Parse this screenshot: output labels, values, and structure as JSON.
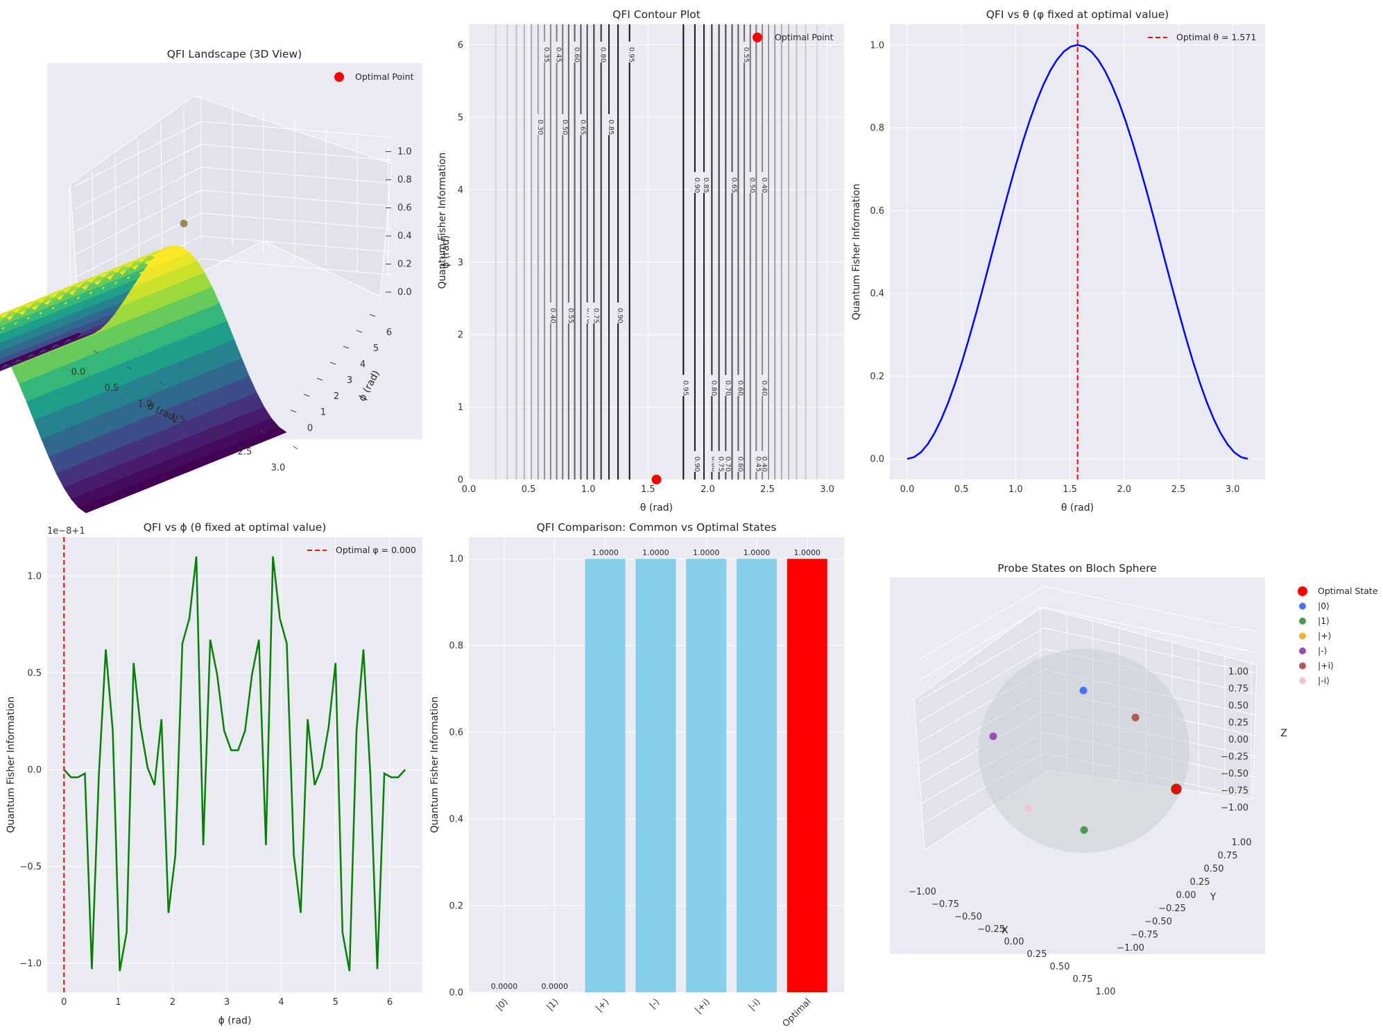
{
  "chart_data": [
    {
      "type": "surface3d",
      "title": "QFI Landscape (3D View)",
      "xlabel": "θ (rad)",
      "ylabel": "ϕ (rad)",
      "zlabel": "Quantum Fisher Information",
      "x_ticks": [
        "0.0",
        "0.5",
        "1.0",
        "1.5",
        "2.0",
        "2.5",
        "3.0"
      ],
      "y_ticks": [
        "0",
        "1",
        "2",
        "3",
        "4",
        "5",
        "6"
      ],
      "z_ticks": [
        "0.0",
        "0.2",
        "0.4",
        "0.6",
        "0.8",
        "1.0"
      ],
      "xlim": [
        0,
        3.1416
      ],
      "ylim": [
        0,
        6.2832
      ],
      "zlim": [
        0,
        1
      ],
      "function": "sin(theta)^2",
      "colormap": "viridis",
      "optimal_point": {
        "theta": 1.5708,
        "phi": 0,
        "qfi": 1.0
      },
      "legend": [
        "Optimal Point"
      ]
    },
    {
      "type": "contour",
      "title": "QFI Contour Plot",
      "xlabel": "θ (rad)",
      "ylabel": "ϕ (rad)",
      "x_ticks": [
        "0.0",
        "0.5",
        "1.0",
        "1.5",
        "2.0",
        "2.5",
        "3.0"
      ],
      "y_ticks": [
        "0",
        "1",
        "2",
        "3",
        "4",
        "5",
        "6"
      ],
      "xlim": [
        0,
        3.1416
      ],
      "ylim": [
        0,
        6.2832
      ],
      "levels": [
        0.05,
        0.1,
        0.15,
        0.2,
        0.25,
        0.3,
        0.35,
        0.4,
        0.45,
        0.5,
        0.55,
        0.6,
        0.65,
        0.7,
        0.75,
        0.8,
        0.85,
        0.9,
        0.95
      ],
      "contour_labels": [
        "0.35",
        "0.45",
        "0.60",
        "0.80",
        "0.95",
        "0.30",
        "0.50",
        "0.65",
        "0.85",
        "0.85",
        "0.65",
        "0.50",
        "0.40",
        "0.90",
        "0.40",
        "0.55",
        "0.70",
        "0.75",
        "0.90",
        "0.95",
        "0.80",
        "0.70",
        "0.60",
        "0.40",
        "0.95",
        "0.80",
        "0.70",
        "0.60",
        "0.40",
        "0.90",
        "0.75",
        "0.55",
        "0.45"
      ],
      "optimal_point": {
        "theta": 1.5708,
        "phi": 0
      },
      "legend": [
        "Optimal Point"
      ]
    },
    {
      "type": "line",
      "title": "QFI vs θ (φ fixed at optimal value)",
      "xlabel": "θ (rad)",
      "ylabel": "Quantum Fisher Information",
      "x_ticks": [
        "0.0",
        "0.5",
        "1.0",
        "1.5",
        "2.0",
        "2.5",
        "3.0"
      ],
      "y_ticks": [
        "0.0",
        "0.2",
        "0.4",
        "0.6",
        "0.8",
        "1.0"
      ],
      "xlim": [
        -0.16,
        3.3
      ],
      "ylim": [
        -0.05,
        1.05
      ],
      "x_range": [
        0,
        3.1416
      ],
      "function": "sin(theta)^2",
      "optimal_theta": 1.571,
      "legend": [
        "Optimal θ = 1.571"
      ],
      "colors": {
        "curve": "#0000ff",
        "marker": "#ff0000"
      }
    },
    {
      "type": "line",
      "title": "QFI vs ϕ (θ fixed at optimal value)",
      "offset_label": "1e−8+1",
      "xlabel": "ϕ (rad)",
      "ylabel": "Quantum Fisher Information",
      "x_ticks": [
        "0",
        "1",
        "2",
        "3",
        "4",
        "5",
        "6"
      ],
      "y_ticks": [
        "−1.0",
        "−0.5",
        "0.0",
        "0.5",
        "1.0"
      ],
      "xlim": [
        -0.31,
        6.6
      ],
      "ylim": [
        -1.15,
        1.2
      ],
      "x": [
        0,
        0.128,
        0.256,
        0.385,
        0.513,
        0.641,
        0.769,
        0.898,
        1.026,
        1.154,
        1.282,
        1.411,
        1.539,
        1.667,
        1.795,
        1.924,
        2.052,
        2.18,
        2.308,
        2.437,
        2.565,
        2.693,
        2.821,
        2.949,
        3.078,
        3.206,
        3.334,
        3.462,
        3.59,
        3.719,
        3.847,
        3.975,
        4.103,
        4.232,
        4.36,
        4.488,
        4.616,
        4.744,
        4.873,
        5.001,
        5.129,
        5.257,
        5.386,
        5.514,
        5.642,
        5.77,
        5.899,
        6.027,
        6.155,
        6.283
      ],
      "y": [
        0,
        -0.04,
        -0.04,
        -0.02,
        -1.03,
        -0.03,
        0.62,
        0.2,
        -1.04,
        -0.84,
        0.55,
        0.22,
        0.01,
        -0.08,
        0.26,
        -0.74,
        -0.44,
        0.65,
        0.78,
        1.1,
        -0.39,
        0.67,
        0.49,
        0.2,
        0.1,
        0.1,
        0.2,
        0.49,
        0.67,
        -0.39,
        1.1,
        0.78,
        0.65,
        -0.44,
        -0.74,
        0.26,
        -0.08,
        0.01,
        0.22,
        0.55,
        -0.84,
        -1.04,
        0.2,
        0.62,
        -0.03,
        -1.03,
        -0.02,
        -0.04,
        -0.04,
        0
      ],
      "optimal_phi": 0.0,
      "legend": [
        "Optimal φ = 0.000"
      ],
      "colors": {
        "curve": "#008000",
        "marker": "#ff0000"
      }
    },
    {
      "type": "bar",
      "title": "QFI Comparison: Common vs Optimal States",
      "ylabel": "Quantum Fisher Information",
      "categories": [
        "|0⟩",
        "|1⟩",
        "|+⟩",
        "|-⟩",
        "|+i⟩",
        "|-i⟩",
        "Optimal"
      ],
      "values": [
        0.0,
        0.0,
        1.0,
        1.0,
        1.0,
        1.0,
        1.0
      ],
      "value_labels": [
        "0.0000",
        "0.0000",
        "1.0000",
        "1.0000",
        "1.0000",
        "1.0000",
        "1.0000"
      ],
      "y_ticks": [
        "0.0",
        "0.2",
        "0.4",
        "0.6",
        "0.8",
        "1.0"
      ],
      "ylim": [
        0,
        1.05
      ],
      "colors": [
        "#87ceeb",
        "#87ceeb",
        "#87ceeb",
        "#87ceeb",
        "#87ceeb",
        "#87ceeb",
        "#ff0000"
      ]
    },
    {
      "type": "scatter3d",
      "title": "Probe States on Bloch Sphere",
      "xlabel": "X",
      "ylabel": "Y",
      "zlabel": "Z",
      "x_ticks": [
        "−1.00",
        "−0.75",
        "−0.50",
        "−0.25",
        "0.00",
        "0.25",
        "0.50",
        "0.75",
        "1.00"
      ],
      "y_ticks": [
        "1.00",
        "0.75",
        "0.50",
        "0.25",
        "0.00",
        "−0.25",
        "−0.50",
        "−0.75",
        "−1.00"
      ],
      "z_ticks": [
        "1.00",
        "0.75",
        "0.50",
        "0.25",
        "0.00",
        "−0.25",
        "−0.50",
        "−0.75",
        "−1.00"
      ],
      "points": [
        {
          "name": "Optimal State",
          "x": 1,
          "y": 0,
          "z": 0,
          "color": "#ff0000"
        },
        {
          "name": "|0⟩",
          "x": 0,
          "y": 0,
          "z": 1,
          "color": "#4c72ff"
        },
        {
          "name": "|1⟩",
          "x": 0,
          "y": 0,
          "z": -1,
          "color": "#4c9a50"
        },
        {
          "name": "|+⟩",
          "x": 1,
          "y": 0,
          "z": 0,
          "color": "#f5b335"
        },
        {
          "name": "|-⟩",
          "x": -1,
          "y": 0,
          "z": 0,
          "color": "#9b4fae"
        },
        {
          "name": "|+i⟩",
          "x": 0,
          "y": 1,
          "z": 0,
          "color": "#b05a5a"
        },
        {
          "name": "|-i⟩",
          "x": 0,
          "y": -1,
          "z": 0,
          "color": "#f5c6d0"
        }
      ]
    }
  ]
}
